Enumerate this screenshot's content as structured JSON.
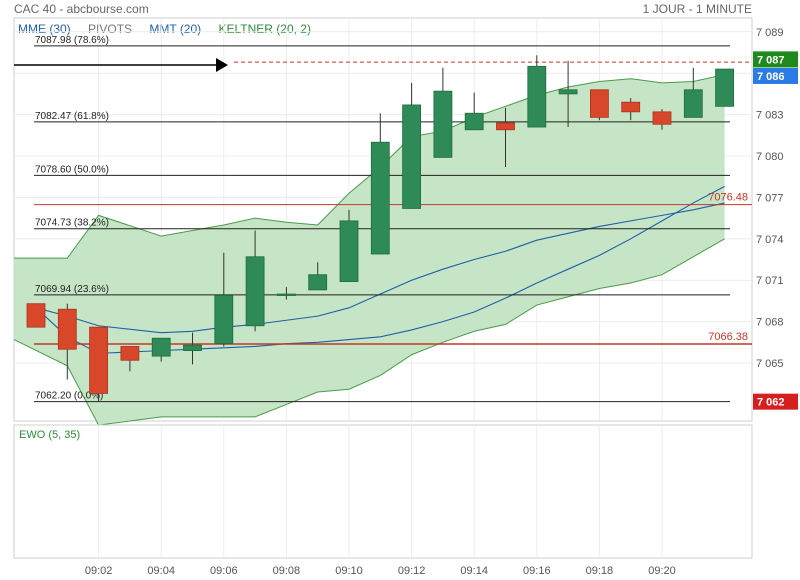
{
  "header": {
    "title": "CAC 40 - abcbourse.com",
    "period": "1 JOUR - 1 MINUTE"
  },
  "legend": [
    {
      "label": "MME (30)",
      "color": "#1f5fa8"
    },
    {
      "label": "PIVOTS",
      "color": "#777777"
    },
    {
      "label": "MMT (20)",
      "color": "#1f5fa8"
    },
    {
      "label": "KELTNER (20, 2)",
      "color": "#2e8b3a"
    }
  ],
  "colors": {
    "up": "#2e8b57",
    "down": "#d9472b",
    "keltner_fill": "#c6e5c6",
    "keltner_line": "#4a9a4a",
    "ema_line": "#1f5fa8",
    "pivot_line": "#c0392b",
    "fib_line": "#222222"
  },
  "chart_data": [
    {
      "type": "candlestick",
      "ylim": [
        7060.8,
        7090.0
      ],
      "y_ticks": [
        7089,
        7086,
        7083,
        7080,
        7077,
        7074,
        7071,
        7068,
        7065
      ],
      "y_tick_labels": [
        "7 089",
        "7 086",
        "7 083",
        "7 080",
        "7 077",
        "7 074",
        "7 071",
        "7 068",
        "7 065"
      ],
      "x_ticks": [
        "09:02",
        "09:04",
        "09:06",
        "09:08",
        "09:10",
        "09:12",
        "09:14",
        "09:16",
        "09:18",
        "09:20"
      ],
      "time_start": "09:00",
      "time_end": "09:23",
      "candles": [
        {
          "t": "09:00",
          "o": 7069.3,
          "h": 7069.3,
          "l": 7067.6,
          "c": 7067.6
        },
        {
          "t": "09:01",
          "o": 7068.9,
          "h": 7069.3,
          "l": 7063.8,
          "c": 7066.0
        },
        {
          "t": "09:02",
          "o": 7067.6,
          "h": 7067.6,
          "l": 7062.2,
          "c": 7062.8
        },
        {
          "t": "09:03",
          "o": 7066.2,
          "h": 7066.2,
          "l": 7064.4,
          "c": 7065.2
        },
        {
          "t": "09:04",
          "o": 7065.5,
          "h": 7066.7,
          "l": 7065.1,
          "c": 7066.8
        },
        {
          "t": "09:05",
          "o": 7065.9,
          "h": 7067.2,
          "l": 7064.9,
          "c": 7066.3
        },
        {
          "t": "09:06",
          "o": 7066.4,
          "h": 7073.0,
          "l": 7066.2,
          "c": 7069.9
        },
        {
          "t": "09:07",
          "o": 7067.7,
          "h": 7074.6,
          "l": 7067.3,
          "c": 7072.7
        },
        {
          "t": "09:08",
          "o": 7070.0,
          "h": 7070.5,
          "l": 7069.6,
          "c": 7070.0
        },
        {
          "t": "09:09",
          "o": 7070.3,
          "h": 7072.3,
          "l": 7070.3,
          "c": 7071.4
        },
        {
          "t": "09:10",
          "o": 7070.9,
          "h": 7076.1,
          "l": 7070.9,
          "c": 7075.3
        },
        {
          "t": "09:11",
          "o": 7072.9,
          "h": 7083.1,
          "l": 7072.9,
          "c": 7081.0
        },
        {
          "t": "09:12",
          "o": 7076.2,
          "h": 7085.3,
          "l": 7076.2,
          "c": 7083.7
        },
        {
          "t": "09:13",
          "o": 7079.9,
          "h": 7086.4,
          "l": 7079.9,
          "c": 7084.7
        },
        {
          "t": "09:14",
          "o": 7081.9,
          "h": 7084.6,
          "l": 7081.9,
          "c": 7083.1
        },
        {
          "t": "09:15",
          "o": 7082.4,
          "h": 7083.5,
          "l": 7079.2,
          "c": 7081.9
        },
        {
          "t": "09:16",
          "o": 7082.1,
          "h": 7087.3,
          "l": 7082.1,
          "c": 7086.5
        },
        {
          "t": "09:17",
          "o": 7084.5,
          "h": 7086.9,
          "l": 7082.1,
          "c": 7084.8
        },
        {
          "t": "09:18",
          "o": 7084.8,
          "h": 7084.8,
          "l": 7082.6,
          "c": 7082.8
        },
        {
          "t": "09:19",
          "o": 7083.9,
          "h": 7084.2,
          "l": 7082.6,
          "c": 7083.2
        },
        {
          "t": "09:20",
          "o": 7083.2,
          "h": 7083.4,
          "l": 7081.9,
          "c": 7082.3
        },
        {
          "t": "09:21",
          "o": 7082.8,
          "h": 7086.4,
          "l": 7082.8,
          "c": 7084.8
        },
        {
          "t": "09:22",
          "o": 7083.6,
          "h": 7086.2,
          "l": 7083.6,
          "c": 7086.3
        }
      ],
      "keltner_upper": [
        {
          "t": "09:00",
          "v": 7072.6
        },
        {
          "t": "09:01",
          "v": 7072.6
        },
        {
          "t": "09:02",
          "v": 7075.7
        },
        {
          "t": "09:04",
          "v": 7074.2
        },
        {
          "t": "09:05",
          "v": 7074.6
        },
        {
          "t": "09:06",
          "v": 7075.0
        },
        {
          "t": "09:07",
          "v": 7075.5
        },
        {
          "t": "09:08",
          "v": 7075.2
        },
        {
          "t": "09:09",
          "v": 7075.0
        },
        {
          "t": "09:10",
          "v": 7077.3
        },
        {
          "t": "09:11",
          "v": 7079.2
        },
        {
          "t": "09:12",
          "v": 7081.4
        },
        {
          "t": "09:13",
          "v": 7081.8
        },
        {
          "t": "09:14",
          "v": 7082.8
        },
        {
          "t": "09:15",
          "v": 7083.6
        },
        {
          "t": "09:16",
          "v": 7084.4
        },
        {
          "t": "09:17",
          "v": 7085.0
        },
        {
          "t": "09:18",
          "v": 7085.4
        },
        {
          "t": "09:19",
          "v": 7085.6
        },
        {
          "t": "09:20",
          "v": 7085.3
        },
        {
          "t": "09:21",
          "v": 7085.4
        },
        {
          "t": "09:22",
          "v": 7085.9
        }
      ],
      "keltner_lower": [
        {
          "t": "09:00",
          "v": 7066.7
        },
        {
          "t": "09:01",
          "v": 7064.8
        },
        {
          "t": "09:02",
          "v": 7060.5
        },
        {
          "t": "09:04",
          "v": 7061.1
        },
        {
          "t": "09:05",
          "v": 7061.1
        },
        {
          "t": "09:06",
          "v": 7061.1
        },
        {
          "t": "09:07",
          "v": 7061.1
        },
        {
          "t": "09:08",
          "v": 7062.0
        },
        {
          "t": "09:09",
          "v": 7062.9
        },
        {
          "t": "09:10",
          "v": 7063.1
        },
        {
          "t": "09:11",
          "v": 7064.1
        },
        {
          "t": "09:12",
          "v": 7065.6
        },
        {
          "t": "09:13",
          "v": 7066.5
        },
        {
          "t": "09:14",
          "v": 7067.3
        },
        {
          "t": "09:15",
          "v": 7067.8
        },
        {
          "t": "09:16",
          "v": 7069.2
        },
        {
          "t": "09:17",
          "v": 7069.8
        },
        {
          "t": "09:18",
          "v": 7070.4
        },
        {
          "t": "09:19",
          "v": 7070.8
        },
        {
          "t": "09:20",
          "v": 7071.4
        },
        {
          "t": "09:21",
          "v": 7072.7
        },
        {
          "t": "09:22",
          "v": 7074.0
        }
      ],
      "ema30": [
        {
          "t": "09:00",
          "v": 7069.0
        },
        {
          "t": "09:01",
          "v": 7068.4
        },
        {
          "t": "09:02",
          "v": 7067.7
        },
        {
          "t": "09:04",
          "v": 7067.2
        },
        {
          "t": "09:05",
          "v": 7067.3
        },
        {
          "t": "09:06",
          "v": 7067.6
        },
        {
          "t": "09:07",
          "v": 7067.8
        },
        {
          "t": "09:08",
          "v": 7068.1
        },
        {
          "t": "09:09",
          "v": 7068.4
        },
        {
          "t": "09:10",
          "v": 7069.0
        },
        {
          "t": "09:11",
          "v": 7070.0
        },
        {
          "t": "09:12",
          "v": 7071.0
        },
        {
          "t": "09:13",
          "v": 7071.8
        },
        {
          "t": "09:14",
          "v": 7072.5
        },
        {
          "t": "09:15",
          "v": 7073.1
        },
        {
          "t": "09:16",
          "v": 7073.9
        },
        {
          "t": "09:17",
          "v": 7074.4
        },
        {
          "t": "09:18",
          "v": 7074.9
        },
        {
          "t": "09:19",
          "v": 7075.3
        },
        {
          "t": "09:20",
          "v": 7075.7
        },
        {
          "t": "09:21",
          "v": 7076.1
        },
        {
          "t": "09:22",
          "v": 7076.6
        }
      ],
      "sma20": [
        {
          "t": "09:00",
          "v": 7069.0
        },
        {
          "t": "09:01",
          "v": 7066.9
        },
        {
          "t": "09:02",
          "v": 7065.7
        },
        {
          "t": "09:04",
          "v": 7065.9
        },
        {
          "t": "09:05",
          "v": 7066.0
        },
        {
          "t": "09:06",
          "v": 7066.1
        },
        {
          "t": "09:07",
          "v": 7066.2
        },
        {
          "t": "09:08",
          "v": 7066.4
        },
        {
          "t": "09:09",
          "v": 7066.5
        },
        {
          "t": "09:10",
          "v": 7066.7
        },
        {
          "t": "09:11",
          "v": 7066.9
        },
        {
          "t": "09:12",
          "v": 7067.4
        },
        {
          "t": "09:13",
          "v": 7068.0
        },
        {
          "t": "09:14",
          "v": 7068.7
        },
        {
          "t": "09:15",
          "v": 7069.7
        },
        {
          "t": "09:16",
          "v": 7070.8
        },
        {
          "t": "09:17",
          "v": 7071.8
        },
        {
          "t": "09:18",
          "v": 7072.8
        },
        {
          "t": "09:19",
          "v": 7074.0
        },
        {
          "t": "09:20",
          "v": 7075.3
        },
        {
          "t": "09:21",
          "v": 7076.6
        },
        {
          "t": "09:22",
          "v": 7077.8
        }
      ],
      "fib_levels": [
        {
          "label": "7087.98  (78.6%)",
          "value": 7087.98
        },
        {
          "label": "7082.47  (61.8%)",
          "value": 7082.47
        },
        {
          "label": "7078.60  (50.0%)",
          "value": 7078.6
        },
        {
          "label": "7074.73  (38.2%)",
          "value": 7074.73
        },
        {
          "label": "7069.94  (23.6%)",
          "value": 7069.94
        },
        {
          "label": "7062.20  (0.0%)",
          "value": 7062.2
        }
      ],
      "pivot_levels": [
        {
          "label": "7076.48",
          "value": 7076.48
        },
        {
          "label": "7066.38",
          "value": 7066.38
        }
      ],
      "dashed_level": 7086.8,
      "price_badges": [
        {
          "label": "7 087",
          "value": 7087.0,
          "color": "#1e8a1e"
        },
        {
          "label": "7 086",
          "value": 7085.8,
          "color": "#2a7be4"
        },
        {
          "label": "7 062",
          "value": 7062.2,
          "color": "#d62020"
        }
      ]
    },
    {
      "type": "indicator",
      "title": "EWO (5, 35)",
      "values": []
    }
  ]
}
